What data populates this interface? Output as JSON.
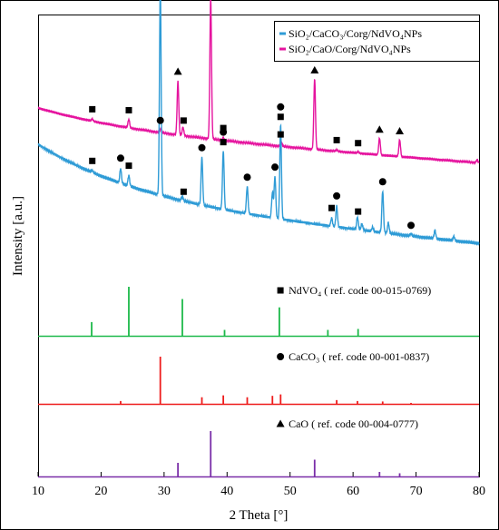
{
  "chart_data": {
    "type": "line",
    "xlabel": "2 Theta [°]",
    "ylabel": "Intensity [a.u.]",
    "xlim": [
      10,
      80
    ],
    "xticks": [
      10,
      20,
      30,
      40,
      50,
      60,
      70,
      80
    ],
    "grid": false,
    "legend_position": "top-right",
    "colors": {
      "sample_caco3": "#2e9bd6",
      "sample_cao": "#e5139e",
      "ref_ndvo4": "#1db94a",
      "ref_caco3": "#ee1c1c",
      "ref_cao": "#7a2ea8"
    },
    "legend": [
      {
        "label": "SiO₂/CaCO₃/Corg/NdVO₄NPs",
        "color": "#2e9bd6"
      },
      {
        "label": "SiO₂/CaO/Corg/NdVO₄NPs",
        "color": "#e5139e"
      }
    ],
    "series": [
      {
        "name": "SiO₂/CaO/Corg/NdVO₄NPs",
        "color": "#e5139e",
        "baseline_start": 0.2,
        "baseline_end": 0.04,
        "peaks": [
          [
            18.6,
            0.015
          ],
          [
            24.4,
            0.06
          ],
          [
            29.5,
            0.03
          ],
          [
            32.2,
            0.38
          ],
          [
            33.0,
            0.06
          ],
          [
            37.4,
            1.0
          ],
          [
            39.4,
            0.02
          ],
          [
            48.6,
            0.03
          ],
          [
            53.9,
            0.5
          ],
          [
            57.4,
            0.01
          ],
          [
            60.8,
            0.01
          ],
          [
            64.2,
            0.12
          ],
          [
            67.4,
            0.12
          ],
          [
            79.7,
            0.02
          ]
        ]
      },
      {
        "name": "SiO₂/CaCO₃/Corg/NdVO₄NPs",
        "color": "#2e9bd6",
        "baseline_start": 0.3,
        "baseline_end": 0.03,
        "peaks": [
          [
            18.6,
            0.01
          ],
          [
            23.1,
            0.07
          ],
          [
            24.4,
            0.05
          ],
          [
            29.4,
            1.0
          ],
          [
            32.9,
            0.02
          ],
          [
            36.0,
            0.23
          ],
          [
            39.4,
            0.28
          ],
          [
            43.2,
            0.13
          ],
          [
            47.2,
            0.12
          ],
          [
            47.6,
            0.2
          ],
          [
            48.5,
            0.45
          ],
          [
            56.6,
            0.04
          ],
          [
            57.4,
            0.1
          ],
          [
            60.7,
            0.06
          ],
          [
            61.4,
            0.03
          ],
          [
            63.1,
            0.02
          ],
          [
            64.7,
            0.2
          ],
          [
            65.6,
            0.05
          ],
          [
            69.2,
            0.01
          ],
          [
            73.0,
            0.04
          ],
          [
            76.0,
            0.02
          ]
        ]
      }
    ],
    "references": [
      {
        "label": "NdVO₄ ( ref. code 00-015-0769)",
        "marker": "square",
        "color": "#1db94a",
        "peaks": [
          [
            18.5,
            0.28
          ],
          [
            24.4,
            1.0
          ],
          [
            32.9,
            0.75
          ],
          [
            39.6,
            0.12
          ],
          [
            48.3,
            0.58
          ],
          [
            56.0,
            0.12
          ],
          [
            60.8,
            0.14
          ]
        ]
      },
      {
        "label": "CaCO₃ ( ref. code 00-001-0837)",
        "marker": "circle",
        "color": "#ee1c1c",
        "peaks": [
          [
            23.1,
            0.06
          ],
          [
            29.4,
            1.0
          ],
          [
            36.0,
            0.14
          ],
          [
            39.4,
            0.18
          ],
          [
            43.2,
            0.14
          ],
          [
            47.2,
            0.17
          ],
          [
            48.5,
            0.2
          ],
          [
            57.4,
            0.08
          ],
          [
            60.7,
            0.06
          ],
          [
            64.7,
            0.05
          ],
          [
            69.2,
            0.02
          ]
        ]
      },
      {
        "label": "CaO ( ref. code 00-004-0777)",
        "marker": "triangle",
        "color": "#7a2ea8",
        "peaks": [
          [
            32.2,
            0.3
          ],
          [
            37.4,
            1.0
          ],
          [
            53.9,
            0.37
          ],
          [
            64.2,
            0.1
          ],
          [
            67.4,
            0.07
          ]
        ]
      }
    ],
    "markers": [
      {
        "x": 18.6,
        "s": 0,
        "level": 1,
        "type": "square"
      },
      {
        "x": 24.4,
        "s": 0,
        "level": 1,
        "type": "square"
      },
      {
        "x": 29.4,
        "s": 0,
        "level": 11,
        "type": "circle"
      },
      {
        "x": 32.2,
        "s": 0,
        "level": 6,
        "type": "triangle"
      },
      {
        "x": 33.1,
        "s": 0,
        "level": 1,
        "type": "square"
      },
      {
        "x": 37.4,
        "s": 0,
        "level": 15,
        "type": "triangle"
      },
      {
        "x": 39.4,
        "s": 0,
        "level": 1,
        "type": "square"
      },
      {
        "x": 48.5,
        "s": 0,
        "level": 1,
        "type": "square"
      },
      {
        "x": 53.9,
        "s": 0,
        "level": 8,
        "type": "triangle"
      },
      {
        "x": 57.4,
        "s": 0,
        "level": 1,
        "type": "square"
      },
      {
        "x": 60.8,
        "s": 0,
        "level": 1,
        "type": "square"
      },
      {
        "x": 64.2,
        "s": 0,
        "level": 2,
        "type": "triangle"
      },
      {
        "x": 67.4,
        "s": 0,
        "level": 2,
        "type": "triangle"
      },
      {
        "x": 18.6,
        "s": 1,
        "level": 1,
        "type": "square"
      },
      {
        "x": 23.1,
        "s": 1,
        "level": 2,
        "type": "circle"
      },
      {
        "x": 24.4,
        "s": 1,
        "level": 1,
        "type": "square"
      },
      {
        "x": 33.1,
        "s": 1,
        "level": 0,
        "type": "square"
      },
      {
        "x": 36.0,
        "s": 1,
        "level": 4,
        "type": "circle"
      },
      {
        "x": 39.4,
        "s": 1,
        "level": 5,
        "type": "square"
      },
      {
        "x": 39.4,
        "s": 1,
        "level": 6,
        "type": "circle"
      },
      {
        "x": 43.2,
        "s": 1,
        "level": 3,
        "type": "circle"
      },
      {
        "x": 47.6,
        "s": 1,
        "level": 4,
        "type": "circle"
      },
      {
        "x": 48.5,
        "s": 1,
        "level": 7,
        "type": "square"
      },
      {
        "x": 48.5,
        "s": 1,
        "level": 8,
        "type": "circle"
      },
      {
        "x": 56.6,
        "s": 1,
        "level": 0,
        "type": "square"
      },
      {
        "x": 57.4,
        "s": 1,
        "level": 2,
        "type": "circle"
      },
      {
        "x": 60.8,
        "s": 1,
        "level": 0,
        "type": "square"
      },
      {
        "x": 64.7,
        "s": 1,
        "level": 3,
        "type": "circle"
      },
      {
        "x": 69.2,
        "s": 1,
        "level": 0,
        "type": "circle"
      }
    ]
  }
}
